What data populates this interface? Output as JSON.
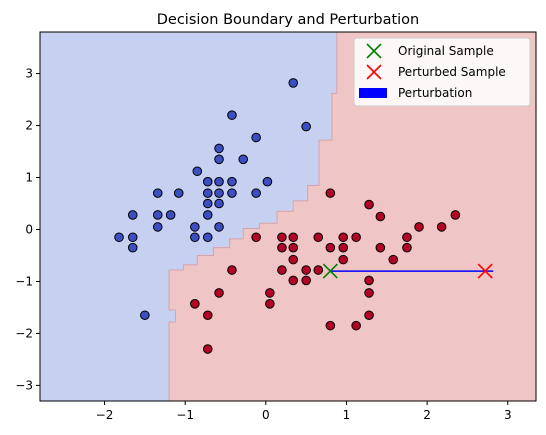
{
  "chart_data": {
    "type": "scatter",
    "title": "Decision Boundary and Perturbation",
    "xlabel": "",
    "ylabel": "",
    "xlim": [
      -2.8,
      3.35
    ],
    "ylim": [
      -3.3,
      3.8
    ],
    "x_ticks": [
      -2,
      -1,
      0,
      1,
      2,
      3
    ],
    "y_ticks": [
      -3,
      -2,
      -1,
      0,
      1,
      2,
      3
    ],
    "x_tick_labels": [
      "−2",
      "−1",
      "0",
      "1",
      "2",
      "3"
    ],
    "y_tick_labels": [
      "−3",
      "−2",
      "−1",
      "0",
      "1",
      "2",
      "3"
    ],
    "grid": false,
    "legend_position": "top-right",
    "colors": {
      "region_class0": "#c6d1f2",
      "region_class1": "#efc5c5",
      "boundary": "#d6a3aa",
      "class0_point": "#3d4ec2",
      "class1_point": "#b40426",
      "original_marker": "#008000",
      "perturbed_marker": "#ff0000",
      "perturbation_line": "#0000ff"
    },
    "decision_boundary": [
      [
        0.88,
        3.8
      ],
      [
        0.88,
        2.62
      ],
      [
        0.82,
        2.62
      ],
      [
        0.82,
        1.72
      ],
      [
        0.66,
        1.72
      ],
      [
        0.66,
        0.85
      ],
      [
        0.52,
        0.85
      ],
      [
        0.52,
        0.55
      ],
      [
        0.34,
        0.55
      ],
      [
        0.34,
        0.35
      ],
      [
        0.14,
        0.35
      ],
      [
        0.14,
        0.12
      ],
      [
        -0.08,
        0.12
      ],
      [
        -0.08,
        0.02
      ],
      [
        -0.28,
        0.02
      ],
      [
        -0.28,
        -0.18
      ],
      [
        -0.45,
        -0.18
      ],
      [
        -0.45,
        -0.35
      ],
      [
        -0.65,
        -0.35
      ],
      [
        -0.65,
        -0.5
      ],
      [
        -0.85,
        -0.5
      ],
      [
        -0.85,
        -0.68
      ],
      [
        -1.02,
        -0.68
      ],
      [
        -1.02,
        -0.78
      ],
      [
        -1.2,
        -0.78
      ],
      [
        -1.2,
        -1.55
      ],
      [
        -1.12,
        -1.55
      ],
      [
        -1.12,
        -1.78
      ],
      [
        -1.2,
        -1.78
      ],
      [
        -1.2,
        -3.3
      ]
    ],
    "series": [
      {
        "class": 0,
        "points": [
          [
            0.34,
            2.82
          ],
          [
            0.5,
            1.98
          ],
          [
            -0.42,
            2.2
          ],
          [
            -0.12,
            1.77
          ],
          [
            -0.58,
            1.56
          ],
          [
            -0.58,
            1.35
          ],
          [
            -0.85,
            1.12
          ],
          [
            -0.28,
            1.35
          ],
          [
            -0.58,
            0.92
          ],
          [
            -0.72,
            0.92
          ],
          [
            -0.42,
            0.92
          ],
          [
            0.02,
            0.92
          ],
          [
            -1.08,
            0.7
          ],
          [
            -1.34,
            0.7
          ],
          [
            -0.72,
            0.7
          ],
          [
            -0.58,
            0.7
          ],
          [
            -0.42,
            0.7
          ],
          [
            -0.12,
            0.7
          ],
          [
            -0.72,
            0.5
          ],
          [
            -0.58,
            0.5
          ],
          [
            -1.65,
            0.28
          ],
          [
            -1.34,
            0.28
          ],
          [
            -1.18,
            0.28
          ],
          [
            -0.72,
            0.28
          ],
          [
            -0.88,
            0.05
          ],
          [
            -1.34,
            0.05
          ],
          [
            -0.58,
            0.05
          ],
          [
            -1.82,
            -0.15
          ],
          [
            -1.65,
            -0.15
          ],
          [
            -0.88,
            -0.15
          ],
          [
            -0.72,
            -0.15
          ],
          [
            -1.65,
            -0.35
          ],
          [
            -1.5,
            -1.65
          ]
        ]
      },
      {
        "class": 1,
        "points": [
          [
            0.8,
            0.7
          ],
          [
            1.28,
            0.48
          ],
          [
            2.35,
            0.28
          ],
          [
            1.42,
            0.25
          ],
          [
            1.9,
            0.05
          ],
          [
            2.18,
            0.05
          ],
          [
            -0.12,
            -0.15
          ],
          [
            0.2,
            -0.15
          ],
          [
            0.34,
            -0.15
          ],
          [
            0.65,
            -0.15
          ],
          [
            0.96,
            -0.15
          ],
          [
            1.12,
            -0.15
          ],
          [
            1.75,
            -0.15
          ],
          [
            0.2,
            -0.35
          ],
          [
            0.34,
            -0.35
          ],
          [
            0.8,
            -0.35
          ],
          [
            0.96,
            -0.35
          ],
          [
            1.42,
            -0.35
          ],
          [
            1.75,
            -0.35
          ],
          [
            0.34,
            -0.58
          ],
          [
            0.96,
            -0.58
          ],
          [
            1.58,
            -0.58
          ],
          [
            -0.42,
            -0.78
          ],
          [
            0.2,
            -0.78
          ],
          [
            0.5,
            -0.78
          ],
          [
            0.65,
            -0.78
          ],
          [
            0.34,
            -0.98
          ],
          [
            0.5,
            -0.98
          ],
          [
            1.28,
            -0.98
          ],
          [
            0.05,
            -1.22
          ],
          [
            -0.58,
            -1.22
          ],
          [
            1.28,
            -1.22
          ],
          [
            0.05,
            -1.43
          ],
          [
            -0.88,
            -1.43
          ],
          [
            -0.72,
            -1.65
          ],
          [
            1.28,
            -1.65
          ],
          [
            0.8,
            -1.85
          ],
          [
            1.12,
            -1.85
          ],
          [
            -0.72,
            -2.3
          ]
        ]
      }
    ],
    "original_sample": [
      0.8,
      -0.8
    ],
    "perturbed_sample": [
      2.72,
      -0.8
    ],
    "perturbation_line": [
      [
        0.8,
        -0.8
      ],
      [
        2.82,
        -0.8
      ]
    ]
  },
  "legend": {
    "original_label": "Original Sample",
    "perturbed_label": "Perturbed Sample",
    "perturbation_label": "Perturbation"
  }
}
